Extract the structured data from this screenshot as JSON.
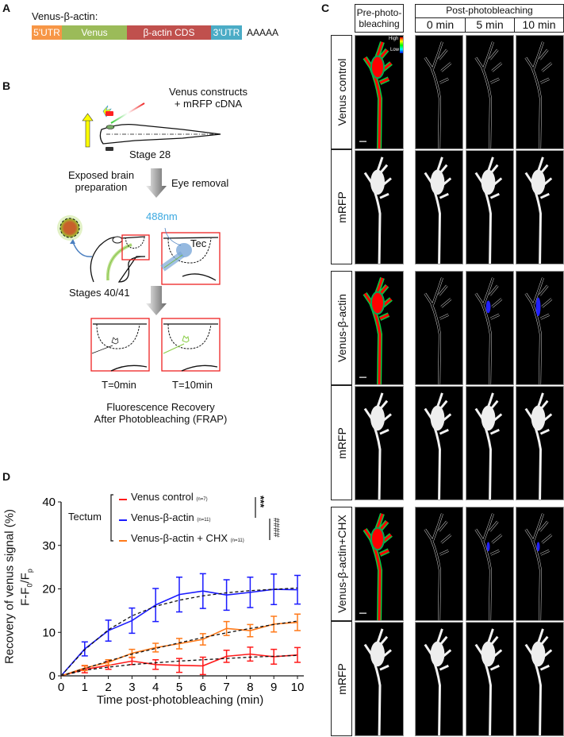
{
  "panelA": {
    "label": "A",
    "title": "Venus-β-actin:",
    "segments": [
      {
        "text": "5'UTR",
        "color": "#f79646"
      },
      {
        "text": "Venus",
        "color": "#9bbb59"
      },
      {
        "text": "β-actin CDS",
        "color": "#c0504d"
      },
      {
        "text": "3'UTR",
        "color": "#4bacc6"
      }
    ],
    "polyA": "AAAAA"
  },
  "panelB": {
    "label": "B",
    "constructs_line1": "Venus constructs",
    "constructs_line2": "+ mRFP cDNA",
    "stage28": "Stage 28",
    "exposed_line1": "Exposed brain",
    "exposed_line2": "preparation",
    "eye_removal": "Eye removal",
    "laser": "488nm",
    "tec": "Tec",
    "stages4041": "Stages 40/41",
    "t0": "T=0min",
    "t10": "T=10min",
    "frap_line1": "Fluorescence Recovery",
    "frap_line2": "After Photobleaching (FRAP)"
  },
  "panelC": {
    "label": "C",
    "pre_line1": "Pre-photo-",
    "pre_line2": "bleaching",
    "post": "Post-photobleaching",
    "times": [
      "0 min",
      "5 min",
      "10 min"
    ],
    "scale_high": "High",
    "scale_low": "Low",
    "rows": [
      "Venus control",
      "mRFP",
      "Venus-β-actin",
      "mRFP",
      "Venus-β-actin+CHX",
      "mRFP"
    ]
  },
  "panelD": {
    "label": "D"
  },
  "chart_data": {
    "type": "line",
    "xlabel": "Time post-photobleaching (min)",
    "ylabel_line1": "Recovery of venus signal (%)",
    "ylabel_line2": "F-F0/Fp",
    "xlim": [
      0,
      10
    ],
    "ylim": [
      0,
      40
    ],
    "xticks": [
      "0",
      "1",
      "2",
      "3",
      "4",
      "5",
      "6",
      "7",
      "8",
      "9",
      "10"
    ],
    "yticks": [
      "0",
      "10",
      "20",
      "30",
      "40"
    ],
    "x": [
      0,
      1,
      2,
      3,
      4,
      5,
      6,
      7,
      8,
      9,
      10
    ],
    "grid": false,
    "legend_group": "Tectum",
    "legend_placement": "top",
    "series": [
      {
        "name": "Venus control",
        "n": "(n=7)",
        "color": "#ff1a1a",
        "values": [
          0,
          1.5,
          2.4,
          3.4,
          2.6,
          2.4,
          2.3,
          4.5,
          5.0,
          4.4,
          4.8
        ],
        "error": [
          0,
          0.8,
          0.9,
          0.8,
          1.1,
          1.6,
          2.0,
          1.4,
          1.6,
          1.7,
          1.7
        ],
        "fit": [
          0,
          1.3,
          2.0,
          2.6,
          3.0,
          3.4,
          3.7,
          4.0,
          4.3,
          4.5,
          4.7
        ]
      },
      {
        "name": "Venus-β-actin",
        "n": "(n=11)",
        "color": "#1a1aff",
        "values": [
          0,
          6.2,
          10.4,
          12.7,
          16.3,
          18.7,
          19.5,
          18.6,
          19.2,
          19.9,
          19.8
        ],
        "error": [
          0,
          1.6,
          2.4,
          2.9,
          3.8,
          4.0,
          4.0,
          3.5,
          3.5,
          3.5,
          3.3
        ],
        "fit": [
          0,
          6.0,
          10.6,
          13.8,
          16.0,
          17.4,
          18.4,
          19.1,
          19.6,
          19.9,
          20.2
        ]
      },
      {
        "name": "Venus-β-actin + CHX",
        "n": "(n=11)",
        "color": "#ff7a1a",
        "values": [
          0,
          1.8,
          3.1,
          5.2,
          6.5,
          7.4,
          8.4,
          10.9,
          10.4,
          11.9,
          12.3
        ],
        "error": [
          0,
          0.6,
          0.6,
          0.9,
          1.0,
          1.2,
          1.3,
          1.6,
          1.4,
          1.8,
          1.9
        ],
        "fit": [
          0,
          1.7,
          3.4,
          5.0,
          6.3,
          7.6,
          8.8,
          9.9,
          10.9,
          11.8,
          12.6
        ]
      }
    ],
    "significance": [
      "***",
      "####"
    ]
  }
}
